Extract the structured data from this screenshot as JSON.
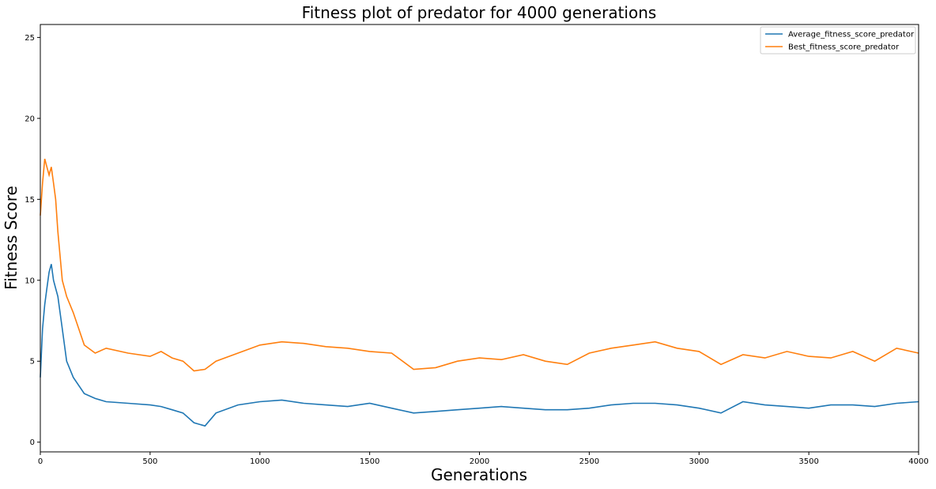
{
  "chart_data": {
    "type": "line",
    "title": "Fitness plot of predator for 4000 generations",
    "xlabel": "Generations",
    "ylabel": "Fitness Score",
    "xlim": [
      0,
      4000
    ],
    "ylim": [
      -0.6,
      25.8
    ],
    "xticks": [
      0,
      500,
      1000,
      1500,
      2000,
      2500,
      3000,
      3500,
      4000
    ],
    "yticks": [
      0,
      5,
      10,
      15,
      20,
      25
    ],
    "grid": false,
    "legend_position": "top-right",
    "series": [
      {
        "name": "Average_fitness_score_predator",
        "color": "#1f77b4",
        "x": [
          0,
          10,
          20,
          30,
          40,
          50,
          60,
          70,
          80,
          100,
          120,
          150,
          200,
          250,
          300,
          400,
          500,
          550,
          600,
          650,
          700,
          750,
          800,
          900,
          1000,
          1100,
          1200,
          1300,
          1400,
          1500,
          1600,
          1700,
          1800,
          1900,
          2000,
          2100,
          2200,
          2300,
          2400,
          2500,
          2600,
          2700,
          2800,
          2900,
          3000,
          3100,
          3200,
          3300,
          3400,
          3500,
          3600,
          3700,
          3800,
          3900,
          4000
        ],
        "y": [
          4.0,
          7.0,
          8.5,
          9.5,
          10.5,
          11.0,
          10.0,
          9.5,
          9.0,
          7.0,
          5.0,
          4.0,
          3.0,
          2.7,
          2.5,
          2.4,
          2.3,
          2.2,
          2.0,
          1.8,
          1.2,
          1.0,
          1.8,
          2.3,
          2.5,
          2.6,
          2.4,
          2.3,
          2.2,
          2.4,
          2.1,
          1.8,
          1.9,
          2.0,
          2.1,
          2.2,
          2.1,
          2.0,
          2.0,
          2.1,
          2.3,
          2.4,
          2.4,
          2.3,
          2.1,
          1.8,
          2.5,
          2.3,
          2.2,
          2.1,
          2.3,
          2.3,
          2.2,
          2.4,
          2.5
        ]
      },
      {
        "name": "Best_fitness_score_predator",
        "color": "#ff7f0e",
        "x": [
          0,
          10,
          20,
          30,
          40,
          50,
          60,
          70,
          80,
          100,
          120,
          150,
          200,
          250,
          300,
          400,
          500,
          550,
          600,
          650,
          700,
          750,
          800,
          900,
          1000,
          1100,
          1200,
          1300,
          1400,
          1500,
          1600,
          1700,
          1800,
          1900,
          2000,
          2100,
          2200,
          2300,
          2400,
          2500,
          2600,
          2700,
          2800,
          2900,
          3000,
          3100,
          3200,
          3300,
          3400,
          3500,
          3600,
          3700,
          3800,
          3900,
          4000
        ],
        "y": [
          14.0,
          16.0,
          17.5,
          17.0,
          16.5,
          17.0,
          16.0,
          15.0,
          13.0,
          10.0,
          9.0,
          8.0,
          6.0,
          5.5,
          5.8,
          5.5,
          5.3,
          5.6,
          5.2,
          5.0,
          4.4,
          4.5,
          5.0,
          5.5,
          6.0,
          6.2,
          6.1,
          5.9,
          5.8,
          5.6,
          5.5,
          4.5,
          4.6,
          5.0,
          5.2,
          5.1,
          5.4,
          5.0,
          4.8,
          5.5,
          5.8,
          6.0,
          6.2,
          5.8,
          5.6,
          4.8,
          5.4,
          5.2,
          5.6,
          5.3,
          5.2,
          5.6,
          5.0,
          5.8,
          5.5
        ]
      }
    ]
  }
}
